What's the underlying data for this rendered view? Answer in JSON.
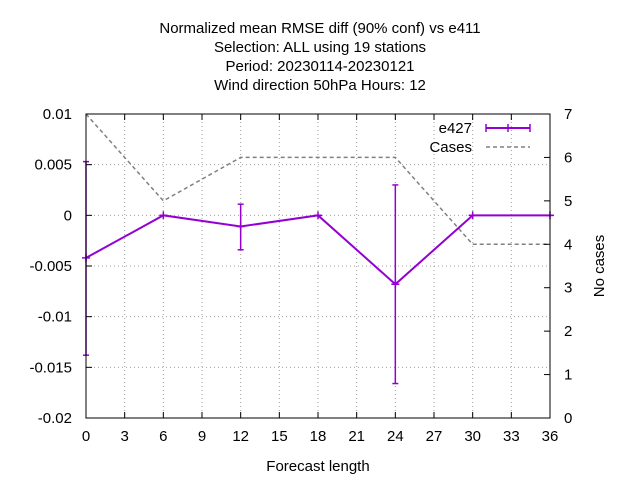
{
  "chart_data": {
    "type": "line",
    "title_lines": [
      "Normalized mean RMSE diff (90% conf) vs e411",
      "Selection: ALL using     19 stations",
      "Period: 20230114-20230121",
      "Wind direction 50hPa   Hours:  12"
    ],
    "xlabel": "Forecast length",
    "ylabel": "",
    "y2label": "No cases",
    "xlim": [
      0,
      36
    ],
    "ylim": [
      -0.02,
      0.01
    ],
    "y2lim": [
      0,
      7
    ],
    "xticks": [
      "0",
      "3",
      "6",
      "9",
      "12",
      "15",
      "18",
      "21",
      "24",
      "27",
      "30",
      "33",
      "36"
    ],
    "yticks": [
      "0.01",
      "0.005",
      "0",
      "-0.005",
      "-0.01",
      "-0.015",
      "-0.02"
    ],
    "y2ticks": [
      "7",
      "6",
      "5",
      "4",
      "3",
      "2",
      "1",
      "0"
    ],
    "grid": true,
    "legend_position": "top-right",
    "series": [
      {
        "name": "e427",
        "axis": "y",
        "color": "#9400d3",
        "style": "solid line with error bars",
        "points": [
          {
            "x": 0,
            "y": -0.0042,
            "err_low": -0.0138,
            "err_high": 0.0053
          },
          {
            "x": 6,
            "y": 0.0,
            "err_low": 0.0,
            "err_high": 0.0
          },
          {
            "x": 12,
            "y": -0.0011,
            "err_low": -0.0034,
            "err_high": 0.0011
          },
          {
            "x": 18,
            "y": 0.0,
            "err_low": 0.0,
            "err_high": 0.0
          },
          {
            "x": 24,
            "y": -0.0068,
            "err_low": -0.0166,
            "err_high": 0.003
          },
          {
            "x": 30,
            "y": 0.0,
            "err_low": 0.0,
            "err_high": 0.0
          },
          {
            "x": 36,
            "y": 0.0,
            "err_low": 0.0,
            "err_high": 0.0
          }
        ]
      },
      {
        "name": "Cases",
        "axis": "y2",
        "color": "#808080",
        "style": "dashed line",
        "points": [
          {
            "x": 0,
            "y": 7
          },
          {
            "x": 6,
            "y": 5
          },
          {
            "x": 12,
            "y": 6
          },
          {
            "x": 24,
            "y": 6
          },
          {
            "x": 30,
            "y": 4
          },
          {
            "x": 36,
            "y": 4
          }
        ]
      }
    ]
  }
}
